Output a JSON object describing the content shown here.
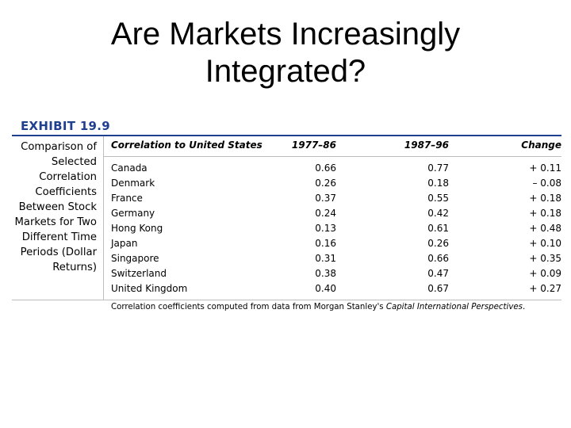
{
  "slide": {
    "title_line1": "Are Markets Increasingly",
    "title_line2": "Integrated?"
  },
  "exhibit": {
    "label": "EXHIBIT 19.9",
    "caption_lines": [
      "Comparison of",
      "Selected",
      "Correlation",
      "Coefficients",
      "Between Stock",
      "Markets for Two",
      "Different Time",
      "Periods (Dollar",
      "Returns)"
    ]
  },
  "table": {
    "headers": {
      "country": "Correlation to United States",
      "period1": "1977–86",
      "period2": "1987–96",
      "change": "Change"
    },
    "rows": [
      {
        "country": "Canada",
        "period1": "0.66",
        "period2": "0.77",
        "change": "+ 0.11"
      },
      {
        "country": "Denmark",
        "period1": "0.26",
        "period2": "0.18",
        "change": "– 0.08"
      },
      {
        "country": "France",
        "period1": "0.37",
        "period2": "0.55",
        "change": "+ 0.18"
      },
      {
        "country": "Germany",
        "period1": "0.24",
        "period2": "0.42",
        "change": "+ 0.18"
      },
      {
        "country": "Hong Kong",
        "period1": "0.13",
        "period2": "0.61",
        "change": "+ 0.48"
      },
      {
        "country": "Japan",
        "period1": "0.16",
        "period2": "0.26",
        "change": "+ 0.10"
      },
      {
        "country": "Singapore",
        "period1": "0.31",
        "period2": "0.66",
        "change": "+ 0.35"
      },
      {
        "country": "Switzerland",
        "period1": "0.38",
        "period2": "0.47",
        "change": "+ 0.09"
      },
      {
        "country": "United Kingdom",
        "period1": "0.40",
        "period2": "0.67",
        "change": "+ 0.27"
      }
    ],
    "footnote_prefix": "Correlation coefficients computed from data from Morgan Stanley's ",
    "footnote_source": "Capital International Perspectives",
    "footnote_suffix": "."
  },
  "colors": {
    "exhibit_accent": "#1f3f8f",
    "rule_gray": "#bdbdbd"
  }
}
